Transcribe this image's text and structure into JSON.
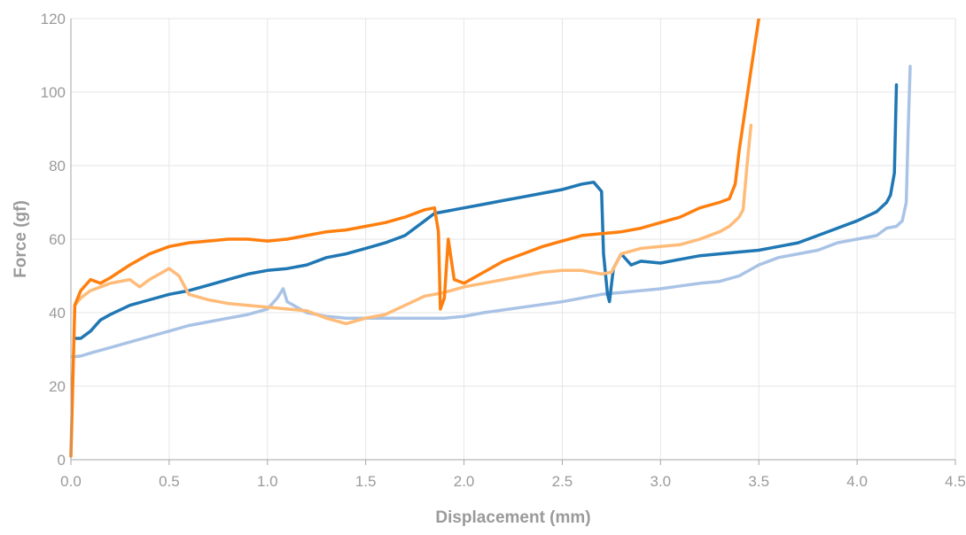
{
  "chart_data": {
    "type": "line",
    "title": "",
    "xlabel": "Displacement (mm)",
    "ylabel": "Force (gf)",
    "xlim": [
      0,
      4.5
    ],
    "ylim": [
      0,
      120
    ],
    "x_ticks": [
      0,
      0.5,
      1,
      1.5,
      2,
      2.5,
      3,
      3.5,
      4,
      4.5
    ],
    "x_tick_labels": [
      "0.0",
      "0.5",
      "1.0",
      "1.5",
      "2.0",
      "2.5",
      "3.0",
      "3.5",
      "4.0",
      "4.5"
    ],
    "y_ticks": [
      0,
      20,
      40,
      60,
      80,
      100,
      120
    ],
    "y_tick_labels": [
      "0",
      "20",
      "40",
      "60",
      "80",
      "100",
      "120"
    ],
    "grid": true,
    "legend": "none",
    "series": [
      {
        "color": "#a9c3e6",
        "points": [
          [
            0.01,
            28
          ],
          [
            0.05,
            28.2
          ],
          [
            0.1,
            29
          ],
          [
            0.2,
            30.5
          ],
          [
            0.3,
            32
          ],
          [
            0.4,
            33.5
          ],
          [
            0.5,
            35
          ],
          [
            0.6,
            36.5
          ],
          [
            0.7,
            37.5
          ],
          [
            0.8,
            38.5
          ],
          [
            0.9,
            39.5
          ],
          [
            1.0,
            41
          ],
          [
            1.05,
            44
          ],
          [
            1.08,
            46.5
          ],
          [
            1.1,
            43
          ],
          [
            1.2,
            40
          ],
          [
            1.3,
            39
          ],
          [
            1.4,
            38.5
          ],
          [
            1.5,
            38.5
          ],
          [
            1.7,
            38.5
          ],
          [
            1.9,
            38.5
          ],
          [
            2.0,
            39
          ],
          [
            2.1,
            40
          ],
          [
            2.3,
            41.5
          ],
          [
            2.5,
            43
          ],
          [
            2.7,
            45
          ],
          [
            2.8,
            45.5
          ],
          [
            3.0,
            46.5
          ],
          [
            3.2,
            48
          ],
          [
            3.3,
            48.5
          ],
          [
            3.4,
            50
          ],
          [
            3.5,
            53
          ],
          [
            3.6,
            55
          ],
          [
            3.7,
            56
          ],
          [
            3.8,
            57
          ],
          [
            3.9,
            59
          ],
          [
            4.0,
            60
          ],
          [
            4.1,
            61
          ],
          [
            4.15,
            63
          ],
          [
            4.2,
            63.5
          ],
          [
            4.23,
            65
          ],
          [
            4.25,
            70
          ],
          [
            4.26,
            90
          ],
          [
            4.27,
            107
          ]
        ]
      },
      {
        "color": "#1f77b4",
        "points": [
          [
            0.02,
            33
          ],
          [
            0.05,
            33
          ],
          [
            0.1,
            35
          ],
          [
            0.15,
            38
          ],
          [
            0.2,
            39.5
          ],
          [
            0.3,
            42
          ],
          [
            0.4,
            43.5
          ],
          [
            0.5,
            45
          ],
          [
            0.6,
            46
          ],
          [
            0.7,
            47.5
          ],
          [
            0.8,
            49
          ],
          [
            0.9,
            50.5
          ],
          [
            1.0,
            51.5
          ],
          [
            1.1,
            52
          ],
          [
            1.2,
            53
          ],
          [
            1.3,
            55
          ],
          [
            1.4,
            56
          ],
          [
            1.5,
            57.5
          ],
          [
            1.6,
            59
          ],
          [
            1.7,
            61
          ],
          [
            1.8,
            65
          ],
          [
            1.85,
            67
          ],
          [
            1.9,
            67.5
          ],
          [
            2.0,
            68.5
          ],
          [
            2.1,
            69.5
          ],
          [
            2.2,
            70.5
          ],
          [
            2.3,
            71.5
          ],
          [
            2.4,
            72.5
          ],
          [
            2.5,
            73.5
          ],
          [
            2.6,
            75
          ],
          [
            2.66,
            75.5
          ],
          [
            2.7,
            73
          ],
          [
            2.71,
            56
          ],
          [
            2.73,
            45
          ],
          [
            2.74,
            43
          ],
          [
            2.76,
            52
          ],
          [
            2.8,
            56
          ],
          [
            2.85,
            53
          ],
          [
            2.9,
            54
          ],
          [
            3.0,
            53.5
          ],
          [
            3.1,
            54.5
          ],
          [
            3.2,
            55.5
          ],
          [
            3.3,
            56
          ],
          [
            3.4,
            56.5
          ],
          [
            3.5,
            57
          ],
          [
            3.6,
            58
          ],
          [
            3.7,
            59
          ],
          [
            3.8,
            61
          ],
          [
            3.9,
            63
          ],
          [
            4.0,
            65
          ],
          [
            4.1,
            67.5
          ],
          [
            4.15,
            70
          ],
          [
            4.17,
            72
          ],
          [
            4.19,
            78
          ],
          [
            4.2,
            102
          ]
        ]
      },
      {
        "color": "#ffbb78",
        "points": [
          [
            0.02,
            42
          ],
          [
            0.05,
            44
          ],
          [
            0.1,
            46
          ],
          [
            0.2,
            48
          ],
          [
            0.3,
            49
          ],
          [
            0.35,
            47
          ],
          [
            0.4,
            49
          ],
          [
            0.45,
            50.5
          ],
          [
            0.5,
            52
          ],
          [
            0.55,
            50
          ],
          [
            0.6,
            45
          ],
          [
            0.7,
            43.5
          ],
          [
            0.8,
            42.5
          ],
          [
            0.9,
            42
          ],
          [
            1.0,
            41.5
          ],
          [
            1.1,
            41
          ],
          [
            1.2,
            40.5
          ],
          [
            1.3,
            38.5
          ],
          [
            1.4,
            37
          ],
          [
            1.5,
            38.5
          ],
          [
            1.6,
            39.5
          ],
          [
            1.7,
            42
          ],
          [
            1.8,
            44.5
          ],
          [
            1.9,
            45.5
          ],
          [
            2.0,
            47
          ],
          [
            2.1,
            48
          ],
          [
            2.2,
            49
          ],
          [
            2.3,
            50
          ],
          [
            2.4,
            51
          ],
          [
            2.5,
            51.5
          ],
          [
            2.6,
            51.5
          ],
          [
            2.7,
            50.5
          ],
          [
            2.75,
            51
          ],
          [
            2.8,
            56
          ],
          [
            2.9,
            57.5
          ],
          [
            3.0,
            58
          ],
          [
            3.1,
            58.5
          ],
          [
            3.2,
            60
          ],
          [
            3.3,
            62
          ],
          [
            3.35,
            63.5
          ],
          [
            3.4,
            66
          ],
          [
            3.42,
            68
          ],
          [
            3.44,
            80
          ],
          [
            3.46,
            91
          ]
        ]
      },
      {
        "color": "#ff7f0e",
        "points": [
          [
            0.0,
            1
          ],
          [
            0.02,
            42
          ],
          [
            0.05,
            46
          ],
          [
            0.1,
            49
          ],
          [
            0.15,
            48
          ],
          [
            0.2,
            49.5
          ],
          [
            0.3,
            53
          ],
          [
            0.4,
            56
          ],
          [
            0.5,
            58
          ],
          [
            0.6,
            59
          ],
          [
            0.7,
            59.5
          ],
          [
            0.8,
            60
          ],
          [
            0.9,
            60
          ],
          [
            1.0,
            59.5
          ],
          [
            1.1,
            60
          ],
          [
            1.2,
            61
          ],
          [
            1.3,
            62
          ],
          [
            1.4,
            62.5
          ],
          [
            1.5,
            63.5
          ],
          [
            1.6,
            64.5
          ],
          [
            1.7,
            66
          ],
          [
            1.8,
            68
          ],
          [
            1.85,
            68.5
          ],
          [
            1.87,
            62
          ],
          [
            1.88,
            41
          ],
          [
            1.9,
            44
          ],
          [
            1.92,
            60
          ],
          [
            1.95,
            49
          ],
          [
            2.0,
            48
          ],
          [
            2.1,
            51
          ],
          [
            2.2,
            54
          ],
          [
            2.3,
            56
          ],
          [
            2.4,
            58
          ],
          [
            2.5,
            59.5
          ],
          [
            2.6,
            61
          ],
          [
            2.7,
            61.5
          ],
          [
            2.8,
            62
          ],
          [
            2.9,
            63
          ],
          [
            3.0,
            64.5
          ],
          [
            3.1,
            66
          ],
          [
            3.2,
            68.5
          ],
          [
            3.3,
            70
          ],
          [
            3.35,
            71
          ],
          [
            3.38,
            75
          ],
          [
            3.4,
            84
          ],
          [
            3.43,
            95
          ],
          [
            3.46,
            106
          ],
          [
            3.5,
            120
          ]
        ]
      }
    ]
  }
}
